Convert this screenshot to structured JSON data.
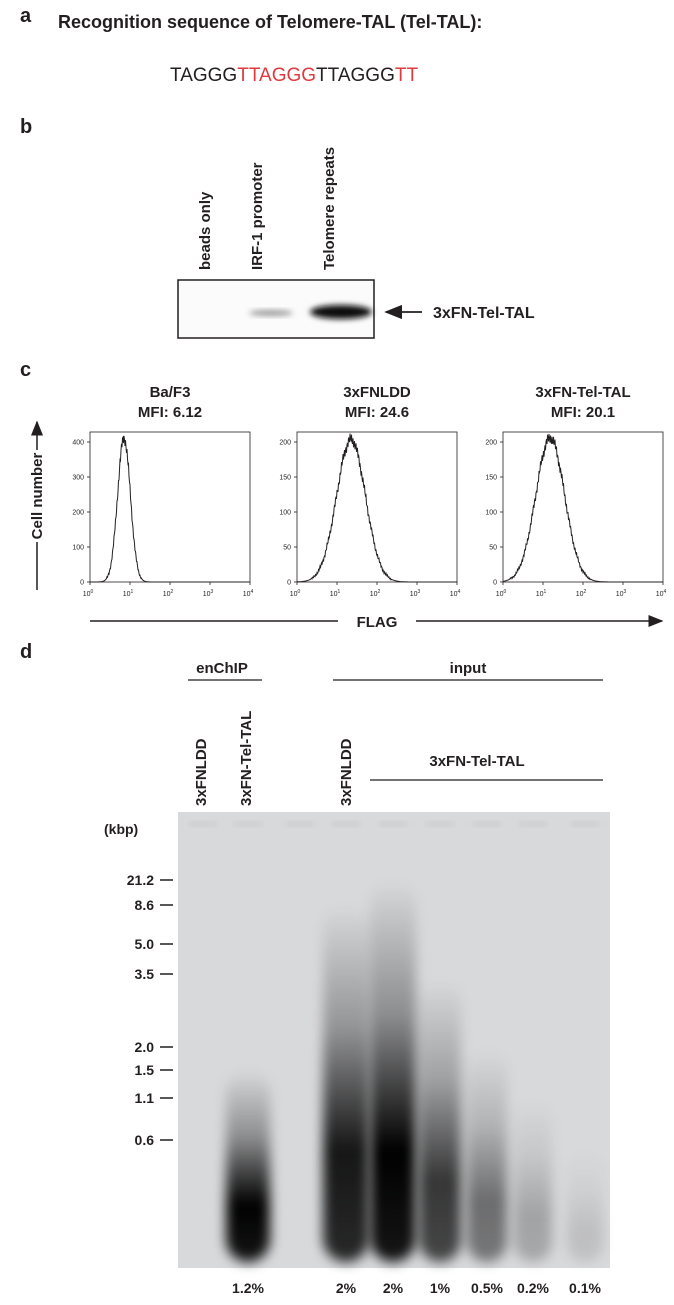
{
  "panel_a": {
    "letter": "a",
    "title": "Recognition sequence of Telomere-TAL (Tel-TAL):",
    "sequence": [
      {
        "text": "TAGGG",
        "color": "#231f20"
      },
      {
        "text": "TTAGGG",
        "color": "#e0393e"
      },
      {
        "text": "TTAGGG",
        "color": "#231f20"
      },
      {
        "text": "TT",
        "color": "#e0393e"
      }
    ]
  },
  "panel_b": {
    "letter": "b",
    "lanes": [
      "beads only",
      "IRF-1 promoter",
      "Telomere repeats"
    ],
    "band_label": "3xFN-Tel-TAL"
  },
  "panel_c": {
    "letter": "c",
    "y_label": "Cell number",
    "x_label": "FLAG",
    "xticks": [
      {
        "base": "10",
        "exp": "0"
      },
      {
        "base": "10",
        "exp": "1"
      },
      {
        "base": "10",
        "exp": "2"
      },
      {
        "base": "10",
        "exp": "3"
      },
      {
        "base": "10",
        "exp": "4"
      }
    ],
    "plots": [
      {
        "name": "Ba/F3",
        "mfi": "MFI: 6.12",
        "yticks": [
          "0",
          "100",
          "200",
          "300",
          "400"
        ]
      },
      {
        "name": "3xFNLDD",
        "mfi": "MFI: 24.6",
        "yticks": [
          "0",
          "50",
          "100",
          "150",
          "200"
        ]
      },
      {
        "name": "3xFN-Tel-TAL",
        "mfi": "MFI: 20.1",
        "yticks": [
          "0",
          "50",
          "100",
          "150",
          "200"
        ]
      }
    ]
  },
  "panel_d": {
    "letter": "d",
    "groups": [
      "enChIP",
      "input"
    ],
    "lane_labels": [
      "3xFNLDD",
      "3xFN-Tel-TAL",
      "3xFNLDD"
    ],
    "subgroup": "3xFN-Tel-TAL",
    "unit": "(kbp)",
    "markers": [
      "21.2",
      "8.6",
      "5.0",
      "3.5",
      "2.0",
      "1.5",
      "1.1",
      "0.6"
    ],
    "loadings": [
      "1.2%",
      "2%",
      "2%",
      "1%",
      "0.5%",
      "0.2%",
      "0.1%"
    ]
  }
}
